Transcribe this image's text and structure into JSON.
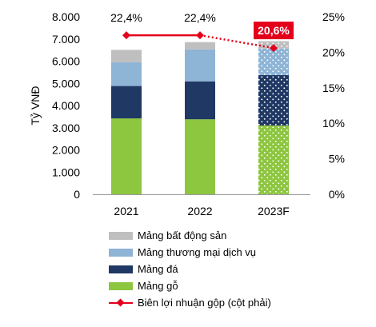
{
  "chart_data": {
    "type": "bar",
    "stacked": true,
    "categories": [
      "2021",
      "2022",
      "2023F"
    ],
    "ylabel": "Tỷ VNĐ",
    "ylim": [
      0,
      8000
    ],
    "y_ticks": [
      "0",
      "1.000",
      "2.000",
      "3.000",
      "4.000",
      "5.000",
      "6.000",
      "7.000",
      "8.000"
    ],
    "y2lim": [
      0,
      25
    ],
    "y2_ticks": [
      "0%",
      "5%",
      "10%",
      "15%",
      "20%",
      "25%"
    ],
    "forecast_category": "2023F",
    "series": [
      {
        "name": "Mảng gỗ",
        "color": "#8DC63F",
        "values": [
          3420,
          3380,
          3100
        ]
      },
      {
        "name": "Mảng đá",
        "color": "#1F3864",
        "values": [
          1460,
          1710,
          2270
        ]
      },
      {
        "name": "Mảng thương mại dịch vụ",
        "color": "#8EB4D6",
        "values": [
          1070,
          1440,
          1200
        ]
      },
      {
        "name": "Mảng bất động sản",
        "color": "#BFBFBF",
        "values": [
          560,
          330,
          330
        ]
      }
    ],
    "line": {
      "name": "Biên lợi nhuận gộp (cột phải)",
      "color": "#E4001B",
      "values": [
        22.4,
        22.4,
        20.6
      ],
      "labels": [
        "22,4%",
        "22,4%",
        "20,6%"
      ],
      "highlight_index": 2
    },
    "legend_order": [
      "Mảng bất động sản",
      "Mảng thương mại dịch vụ",
      "Mảng đá",
      "Mảng gỗ",
      "Biên lợi nhuận gộp (cột phải)"
    ],
    "legend_position": "bottom"
  }
}
